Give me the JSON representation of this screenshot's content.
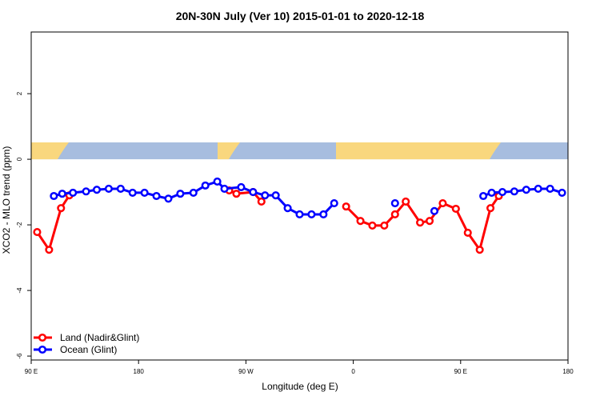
{
  "chart_data": {
    "type": "line",
    "title": "20N-30N July (Ver 10)   2015-01-01 to 2020-12-18",
    "x_label": "Longitude (deg E)",
    "y_label": "XCO2 - MLO trend (ppm)",
    "xlim": [
      90,
      540
    ],
    "ylim": [
      -6.12,
      3.88
    ],
    "xticks": [
      {
        "value": 90,
        "label": "90 E"
      },
      180,
      {
        "value": 270,
        "label": "90 W"
      },
      {
        "value": 360,
        "label": "0"
      },
      {
        "value": 450,
        "label": "90 E"
      },
      {
        "value": 540,
        "label": "180"
      }
    ],
    "yticks": [
      -6,
      -4,
      -2,
      0,
      2
    ],
    "legend": "bottom-left",
    "series": [
      {
        "name": "Land (Nadir&Glint)",
        "color": "#ff0000",
        "x": [
          95,
          105,
          115,
          122,
          246,
          256,
          262,
          276,
          283,
          344,
          354,
          366,
          376,
          386,
          395,
          404,
          416,
          424,
          435,
          446,
          456,
          466,
          475,
          482
        ],
        "values": [
          -2.22,
          -2.76,
          -1.49,
          -1.1,
          null,
          -0.95,
          -1.05,
          -1.0,
          -1.29,
          null,
          -1.44,
          -1.88,
          -2.02,
          -2.02,
          -1.68,
          -1.29,
          -1.93,
          -1.88,
          -1.34,
          -1.51,
          -2.24,
          -2.76,
          -1.49,
          -1.12
        ]
      },
      {
        "name": "Ocean (Glint)",
        "color": "#0000ff",
        "x": [
          109,
          116,
          125,
          136,
          145,
          155,
          165,
          175,
          185,
          195,
          205,
          215,
          226,
          236,
          246,
          252,
          266,
          276,
          286,
          295,
          305,
          315,
          325,
          335,
          344,
          370,
          395,
          410,
          428,
          450,
          469,
          476,
          485,
          495,
          505,
          515,
          525,
          535
        ],
        "values": [
          -1.12,
          -1.05,
          -1.02,
          -0.98,
          -0.93,
          -0.9,
          -0.9,
          -1.02,
          -1.02,
          -1.12,
          -1.2,
          -1.05,
          -1.02,
          -0.8,
          -0.68,
          -0.9,
          -0.85,
          -1.0,
          -1.1,
          -1.1,
          -1.49,
          -1.68,
          -1.68,
          -1.68,
          -1.34,
          null,
          -1.34,
          null,
          -1.58,
          null,
          -1.12,
          -1.02,
          -1.0,
          -0.98,
          -0.93,
          -0.9,
          -0.9,
          -1.02
        ]
      }
    ]
  }
}
